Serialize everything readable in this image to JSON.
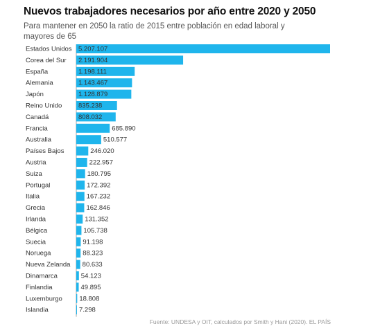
{
  "title": "Nuevos trabajadores necesarios por año entre 2020 y 2050",
  "subtitle": "Para mantener en 2050 la ratio de 2015 entre población en edad laboral y mayores de 65",
  "source": "Fuente: UNDESA y OIT, calculados por Smith y Hani (2020). EL PAÍS",
  "colors": {
    "bar": "#1fb5ec",
    "label": "#333333",
    "baseline": "#666666"
  },
  "chart_data": {
    "type": "bar",
    "orientation": "horizontal",
    "categories": [
      "Estados Unidos",
      "Corea del Sur",
      "España",
      "Alemania",
      "Japón",
      "Reino Unido",
      "Canadá",
      "Francia",
      "Australia",
      "Países Bajos",
      "Austria",
      "Suiza",
      "Portugal",
      "Italia",
      "Grecia",
      "Irlanda",
      "Bélgica",
      "Suecia",
      "Noruega",
      "Nueva Zelanda",
      "Dinamarca",
      "Finlandia",
      "Luxemburgo",
      "Islandia"
    ],
    "values": [
      5207107,
      2191904,
      1198111,
      1143467,
      1128879,
      835238,
      808032,
      685890,
      510577,
      246020,
      222957,
      180795,
      172392,
      167232,
      162846,
      131352,
      105738,
      91198,
      88323,
      80633,
      54123,
      49895,
      18808,
      7298
    ],
    "value_labels": [
      "5.207.107",
      "2.191.904",
      "1.198.111",
      "1.143.467",
      "1.128.879",
      "835.238",
      "808.032",
      "685.890",
      "510.577",
      "246.020",
      "222.957",
      "180.795",
      "172.392",
      "167.232",
      "162.846",
      "131.352",
      "105.738",
      "91.198",
      "88.323",
      "80.633",
      "54.123",
      "49.895",
      "18.808",
      "7.298"
    ],
    "xlim": [
      0,
      5207107
    ],
    "grid": false,
    "legend": "none"
  }
}
